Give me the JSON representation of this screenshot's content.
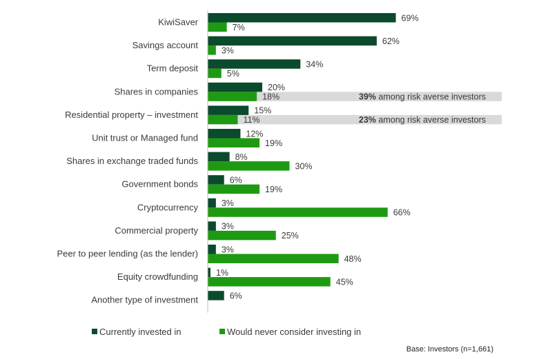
{
  "chart_data": {
    "type": "bar",
    "orientation": "horizontal",
    "categories": [
      "KiwiSaver",
      "Savings account",
      "Term deposit",
      "Shares in companies",
      "Residential property – investment",
      "Unit trust or Managed fund",
      "Shares in exchange traded funds",
      "Government bonds",
      "Cryptocurrency",
      "Commercial property",
      "Peer to peer lending (as the lender)",
      "Equity crowdfunding",
      "Another type of investment"
    ],
    "series": [
      {
        "name": "Currently invested in",
        "color": "#0b4a2c",
        "values": [
          69,
          62,
          34,
          20,
          15,
          12,
          8,
          6,
          3,
          3,
          3,
          1,
          6
        ]
      },
      {
        "name": "Would never consider investing in",
        "color": "#1e9a12",
        "values": [
          7,
          3,
          5,
          18,
          11,
          19,
          30,
          19,
          66,
          25,
          48,
          45,
          null
        ]
      }
    ],
    "value_suffix": "%",
    "xlim": [
      0,
      100
    ],
    "annotations": [
      {
        "category_index": 3,
        "bold": "39%",
        "text": " among risk averse investors"
      },
      {
        "category_index": 4,
        "bold": "23%",
        "text": " among risk averse investors"
      }
    ],
    "legend_position": "bottom-left",
    "base_note": "Base: Investors (n=1,661)"
  },
  "colors": {
    "annotation_band": "#d9d9d9",
    "axis_line": "#bfbfbf"
  }
}
